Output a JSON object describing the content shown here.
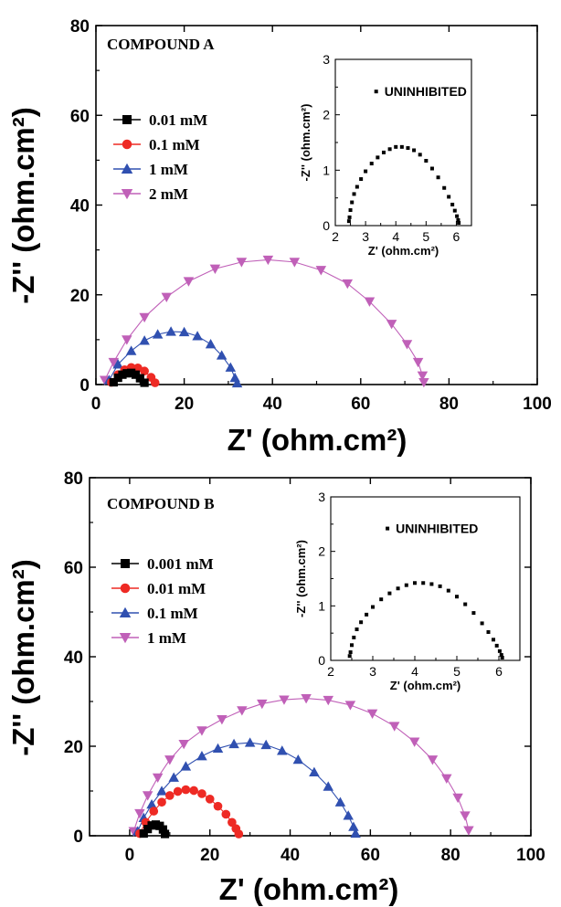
{
  "chart_data": [
    {
      "type": "scatter",
      "title": "COMPOUND A",
      "xlabel": "Z' (ohm.cm²)",
      "ylabel": "-Z'' (ohm.cm²)",
      "xlim": [
        0,
        100
      ],
      "ylim": [
        0,
        80
      ],
      "xticks": [
        0,
        20,
        40,
        60,
        80,
        100
      ],
      "yticks": [
        0,
        20,
        40,
        60,
        80
      ],
      "legend_position": "upper-left",
      "series": [
        {
          "name": "0.01 mM",
          "marker": "square",
          "color": "#000000",
          "x": [
            4,
            5,
            6,
            7,
            8,
            9,
            10,
            11
          ],
          "y": [
            0.5,
            1.5,
            2.2,
            2.5,
            2.6,
            2.2,
            1.4,
            0.4
          ]
        },
        {
          "name": "0.1 mM",
          "marker": "circle",
          "color": "#ee2a24",
          "x": [
            3.5,
            5,
            6.5,
            8,
            9.5,
            11,
            12.5,
            13.4
          ],
          "y": [
            0.5,
            2.2,
            3.3,
            3.8,
            3.7,
            3.0,
            1.6,
            0.4
          ]
        },
        {
          "name": "1 mM",
          "marker": "triangle-up",
          "color": "#3050b0",
          "x": [
            3,
            5,
            8,
            11,
            14,
            17,
            20,
            23,
            26,
            28.5,
            30.5,
            31.5,
            32
          ],
          "y": [
            1,
            4.5,
            7.5,
            9.8,
            11.2,
            11.8,
            11.7,
            10.8,
            9,
            6.5,
            3.8,
            1.5,
            0.3
          ]
        },
        {
          "name": "2 mM",
          "marker": "triangle-down",
          "color": "#c060b8",
          "x": [
            2,
            4,
            7,
            11,
            16,
            21,
            27,
            33,
            39,
            45,
            51,
            57,
            62,
            67,
            70.5,
            73,
            74,
            74.3
          ],
          "y": [
            1,
            5,
            10,
            15,
            19.5,
            23,
            25.8,
            27.3,
            27.8,
            27.3,
            25.5,
            22.5,
            18.5,
            13.5,
            9,
            5,
            2,
            0.5
          ]
        }
      ],
      "inset": {
        "annotation": "UNINHIBITED",
        "xlabel": "Z' (ohm.cm²)",
        "ylabel": "-Z'' (ohm.cm²)",
        "xlim": [
          2,
          6.5
        ],
        "ylim": [
          0,
          3
        ],
        "xticks": [
          2,
          3,
          4,
          5,
          6
        ],
        "yticks": [
          0,
          1,
          2,
          3
        ],
        "x": [
          2.45,
          2.47,
          2.5,
          2.55,
          2.62,
          2.72,
          2.85,
          3.0,
          3.2,
          3.4,
          3.6,
          3.8,
          4.0,
          4.2,
          4.4,
          4.6,
          4.8,
          5.0,
          5.2,
          5.4,
          5.6,
          5.75,
          5.87,
          5.95,
          6.02,
          6.06,
          6.08
        ],
        "y": [
          0.08,
          0.15,
          0.28,
          0.42,
          0.57,
          0.7,
          0.84,
          0.98,
          1.12,
          1.23,
          1.32,
          1.38,
          1.42,
          1.42,
          1.4,
          1.36,
          1.28,
          1.17,
          1.03,
          0.87,
          0.68,
          0.52,
          0.38,
          0.27,
          0.17,
          0.1,
          0.05
        ]
      }
    },
    {
      "type": "scatter",
      "title": "COMPOUND B",
      "xlabel": "Z' (ohm.cm²)",
      "ylabel": "-Z'' (ohm.cm²)",
      "xlim": [
        -10,
        100
      ],
      "ylim": [
        0,
        80
      ],
      "xticks": [
        0,
        20,
        40,
        60,
        80,
        100
      ],
      "yticks": [
        0,
        20,
        40,
        60,
        80
      ],
      "legend_position": "upper-left",
      "series": [
        {
          "name": "0.001 mM",
          "marker": "square",
          "color": "#000000",
          "x": [
            3.5,
            4.5,
            5.5,
            6.5,
            7.5,
            8.3,
            8.8
          ],
          "y": [
            0.5,
            1.5,
            2.3,
            2.5,
            2.2,
            1.4,
            0.4
          ]
        },
        {
          "name": "0.01 mM",
          "marker": "circle",
          "color": "#ee2a24",
          "x": [
            2.5,
            4,
            6,
            8,
            10,
            12,
            14,
            16,
            18,
            20,
            22,
            24,
            25.5,
            26.5,
            27.2
          ],
          "y": [
            0.5,
            3,
            5.5,
            7.5,
            9,
            9.9,
            10.3,
            10.1,
            9.4,
            8.2,
            6.6,
            4.8,
            3.0,
            1.6,
            0.4
          ]
        },
        {
          "name": "0.1 mM",
          "marker": "triangle-up",
          "color": "#3050b0",
          "x": [
            2,
            3.5,
            5.5,
            8,
            11,
            14,
            18,
            22,
            26,
            30,
            34,
            38,
            42,
            46,
            49.5,
            52.5,
            54.5,
            55.8,
            56.3
          ],
          "y": [
            1,
            4,
            7,
            10,
            13,
            15.5,
            17.8,
            19.5,
            20.5,
            20.8,
            20.3,
            19,
            17,
            14.2,
            11,
            7.5,
            4.5,
            2,
            0.5
          ]
        },
        {
          "name": "1 mM",
          "marker": "triangle-down",
          "color": "#c060b8",
          "x": [
            1,
            2.5,
            4.5,
            7,
            10,
            13.5,
            18,
            23,
            28,
            33,
            38.5,
            44,
            49.5,
            55,
            60.5,
            66,
            71,
            75.5,
            79,
            81.8,
            83.6,
            84.5
          ],
          "y": [
            1,
            5,
            9,
            13,
            17,
            20.5,
            23.5,
            26,
            28,
            29.5,
            30.4,
            30.7,
            30.3,
            29.2,
            27.3,
            24.5,
            21,
            17,
            12.8,
            8.5,
            4.5,
            1.2
          ]
        }
      ],
      "inset": {
        "annotation": "UNINHIBITED",
        "xlabel": "Z' (ohm.cm²)",
        "ylabel": "-Z'' (ohm.cm²)",
        "xlim": [
          2,
          6.5
        ],
        "ylim": [
          0,
          3
        ],
        "xticks": [
          2,
          3,
          4,
          5,
          6
        ],
        "yticks": [
          0,
          1,
          2,
          3
        ],
        "x": [
          2.45,
          2.47,
          2.5,
          2.55,
          2.62,
          2.72,
          2.85,
          3.0,
          3.2,
          3.4,
          3.6,
          3.8,
          4.0,
          4.2,
          4.4,
          4.6,
          4.8,
          5.0,
          5.2,
          5.4,
          5.6,
          5.75,
          5.87,
          5.95,
          6.02,
          6.06,
          6.08
        ],
        "y": [
          0.08,
          0.15,
          0.28,
          0.42,
          0.57,
          0.7,
          0.84,
          0.98,
          1.12,
          1.23,
          1.32,
          1.38,
          1.42,
          1.42,
          1.4,
          1.36,
          1.28,
          1.17,
          1.03,
          0.87,
          0.68,
          0.52,
          0.38,
          0.27,
          0.17,
          0.1,
          0.05
        ]
      }
    }
  ]
}
